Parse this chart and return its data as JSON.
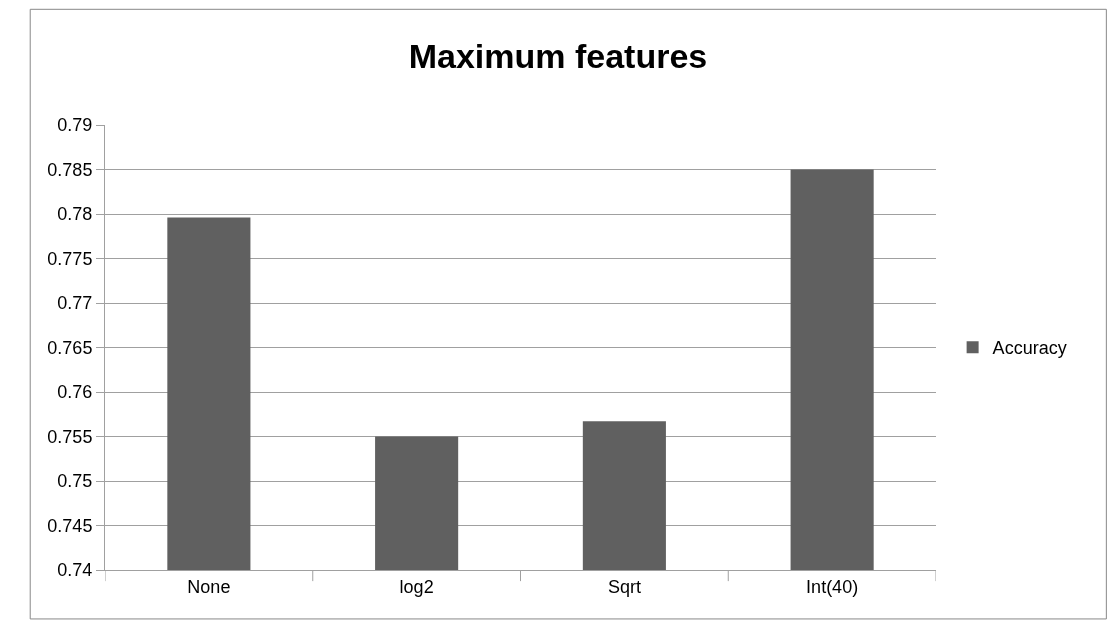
{
  "chart_data": {
    "type": "bar",
    "title": "Maximum features",
    "categories": [
      "None",
      "log2",
      "Sqrt",
      "Int(40)"
    ],
    "series": [
      {
        "name": "Accuracy",
        "color": "#606060",
        "values": [
          0.7796,
          0.755,
          0.7567,
          0.785
        ]
      }
    ],
    "ylim": [
      0.74,
      0.79
    ],
    "yticks": [
      0.74,
      0.745,
      0.75,
      0.755,
      0.76,
      0.765,
      0.77,
      0.775,
      0.78,
      0.785,
      0.79
    ],
    "grid": "y",
    "legend": "right"
  }
}
